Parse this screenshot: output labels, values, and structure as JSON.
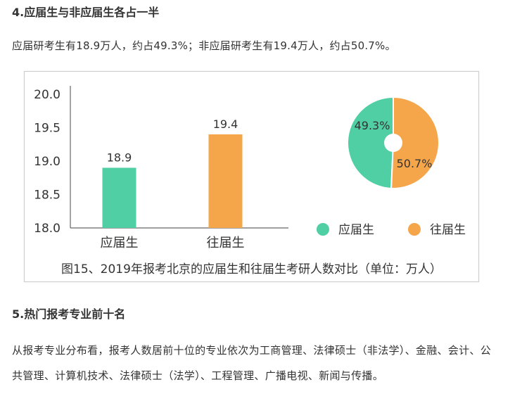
{
  "section4": {
    "heading": "4.应届生与非应届生各占一半",
    "paragraph": "应届研考生有18.9万人，约占49.3%；非应届研考生有19.4万人，约占50.7%。"
  },
  "figure": {
    "caption": "图15、2019年报考北京的应届生和往届生考研人数对比（单位：万人）"
  },
  "chart_data": [
    {
      "type": "bar",
      "categories": [
        "应届生",
        "往届生"
      ],
      "values": [
        18.9,
        19.4
      ],
      "value_labels": [
        "18.9",
        "19.4"
      ],
      "ylim": [
        18.0,
        20.0
      ],
      "yticks": [
        "18.0",
        "18.5",
        "19.0",
        "19.5",
        "20.0"
      ],
      "colors": [
        "#4fcfa3",
        "#f5a54a"
      ],
      "grid": false
    },
    {
      "type": "pie",
      "labels": [
        "应届生",
        "往届生"
      ],
      "values": [
        49.3,
        50.7
      ],
      "value_labels": [
        "49.3%",
        "50.7%"
      ],
      "colors": [
        "#4fcfa3",
        "#f5a54a"
      ],
      "legend": [
        "应届生",
        "往届生"
      ],
      "legend_placement": "bottom"
    }
  ],
  "section5": {
    "heading": "5.热门报考专业前十名",
    "paragraph": "从报考专业分布看，报考人数居前十位的专业依次为工商管理、法律硕士（非法学）、金融、会计、公共管理、计算机技术、法律硕士（法学）、工程管理、广播电视、新闻与传播。"
  }
}
